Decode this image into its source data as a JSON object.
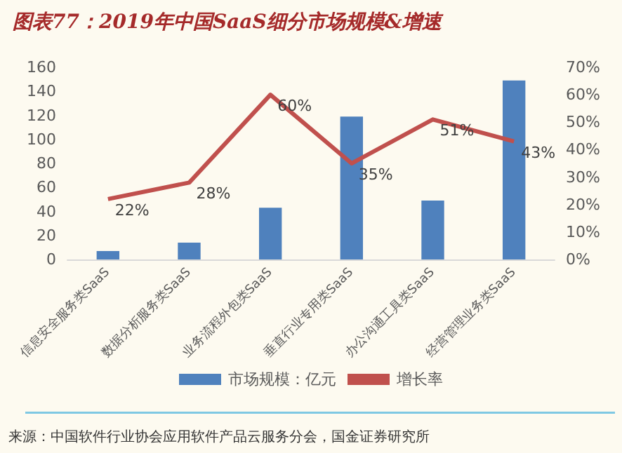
{
  "chart_data": {
    "type": "bar",
    "title": "图表77：2019年中国SaaS细分市场规模&增速",
    "categories": [
      "信息安全服务类SaaS",
      "数据分析服务类SaaS",
      "业务流程外包类SaaS",
      "垂直行业专用类SaaS",
      "办公沟通工具类SaaS",
      "经营管理业务类SaaS"
    ],
    "series": [
      {
        "name": "市场规模：亿元",
        "color": "#4f81bd",
        "values": [
          7,
          14,
          43,
          119,
          49,
          149
        ]
      },
      {
        "name": "增长率",
        "type": "line",
        "axis": "y2",
        "color": "#c0504d",
        "marker": "none",
        "values": [
          22,
          28,
          60,
          35,
          51,
          43
        ],
        "value_labels": [
          "22%",
          "28%",
          "60%",
          "35%",
          "51%",
          "43%"
        ]
      }
    ],
    "ylim": [
      0,
      160
    ],
    "yticks": [
      0,
      20,
      40,
      60,
      80,
      100,
      120,
      140,
      160
    ],
    "y2lim": [
      0,
      70
    ],
    "y2ticks": [
      {
        "value": 0,
        "label": "0%"
      },
      {
        "value": 10,
        "label": "10%"
      },
      {
        "value": 20,
        "label": "20%"
      },
      {
        "value": 30,
        "label": "30%"
      },
      {
        "value": 40,
        "label": "40%"
      },
      {
        "value": 50,
        "label": "50%"
      },
      {
        "value": 60,
        "label": "60%"
      },
      {
        "value": 70,
        "label": "70%"
      }
    ],
    "grid": false,
    "legend": "bottom",
    "annotations": [
      "来源：中国软件行业协会应用软件产品云服务分会，国金证券研究所"
    ]
  }
}
